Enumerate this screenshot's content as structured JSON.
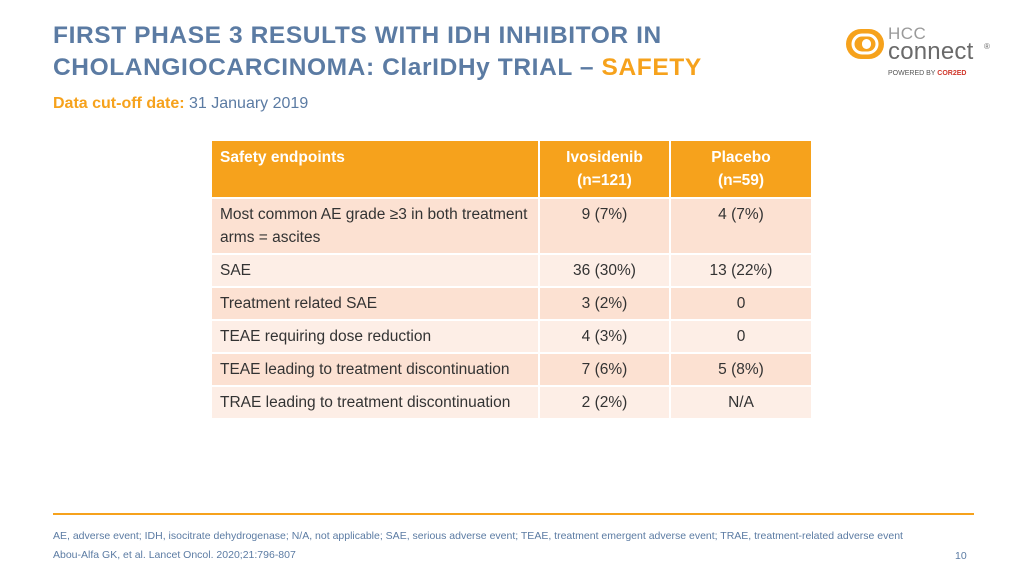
{
  "title": {
    "line1": "FIRST PHASE 3 RESULTS WITH IDH INHIBITOR IN",
    "line2_main": "CHOLANGIOCARCINOMA: ClarIDHy TRIAL – ",
    "line2_accent": "SAFETY"
  },
  "cutoff": {
    "label": "Data cut-off date:",
    "value": "31 January 2019"
  },
  "logo": {
    "hcc": "HCC",
    "connect": "connect",
    "registered": "®",
    "powered_by": "POWERED BY",
    "brand": "COR2ED"
  },
  "colors": {
    "accent": "#F6A21C",
    "title_blue": "#5B7BA3",
    "row_dark": "#FCE1D2",
    "row_light": "#FDEEE6"
  },
  "table": {
    "headers": {
      "endpoint": "Safety endpoints",
      "ivosidenib": "Ivosidenib",
      "ivosidenib_n": "(n=121)",
      "placebo": "Placebo",
      "placebo_n": "(n=59)"
    },
    "rows": [
      {
        "endpoint": "Most common AE grade ≥3 in both treatment arms = ascites",
        "ivosidenib": "9 (7%)",
        "placebo": "4 (7%)"
      },
      {
        "endpoint": "SAE",
        "ivosidenib": "36 (30%)",
        "placebo": "13 (22%)"
      },
      {
        "endpoint": "Treatment related SAE",
        "ivosidenib": "3 (2%)",
        "placebo": "0"
      },
      {
        "endpoint": "TEAE requiring dose reduction",
        "ivosidenib": "4 (3%)",
        "placebo": "0"
      },
      {
        "endpoint": "TEAE leading to treatment discontinuation",
        "ivosidenib": "7 (6%)",
        "placebo": "5 (8%)"
      },
      {
        "endpoint": "TRAE leading to treatment discontinuation",
        "ivosidenib": "2 (2%)",
        "placebo": "N/A"
      }
    ]
  },
  "footer": {
    "abbreviations": "AE, adverse event; IDH, isocitrate dehydrogenase; N/A, not applicable; SAE, serious adverse event; TEAE, treatment emergent adverse event; TRAE, treatment-related adverse event",
    "reference": "Abou-Alfa GK, et al. Lancet Oncol. 2020;21:796-807",
    "page_number": "10"
  }
}
